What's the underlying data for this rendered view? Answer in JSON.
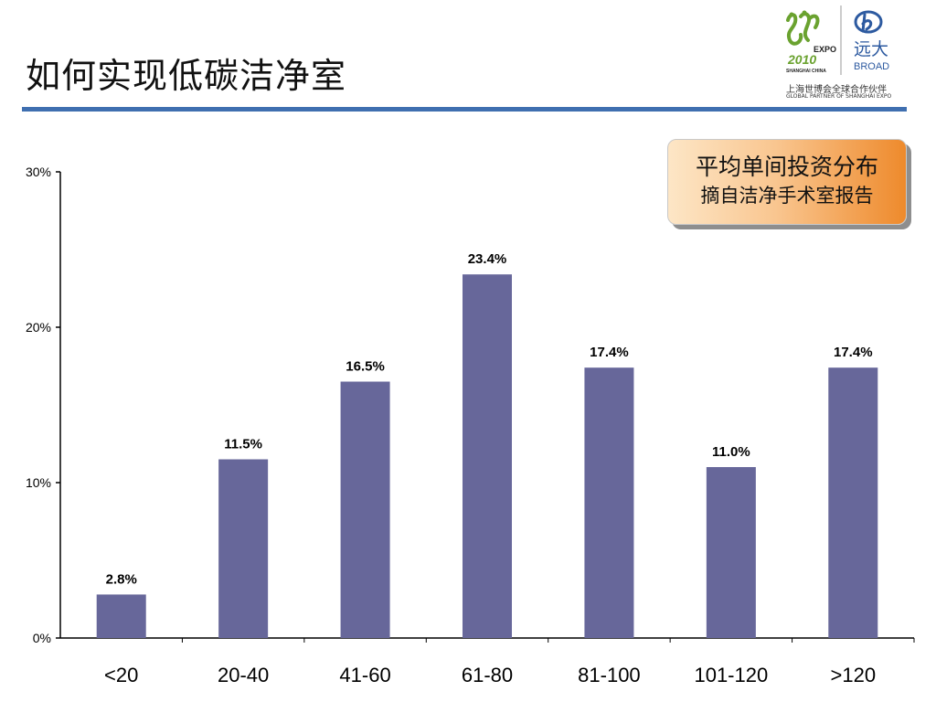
{
  "slide": {
    "title": "如何实现低碳洁净室",
    "logo": {
      "expo_word": "EXPO",
      "expo_year": "2010",
      "expo_place": "SHANGHAI CHINA",
      "brand_cn": "远大",
      "brand_en": "BROAD",
      "partner_cn": "上海世博会全球合作伙伴",
      "partner_en": "GLOBAL PARTNER OF SHANGHAI EXPO"
    },
    "note": {
      "line1": "平均单间投资分布",
      "line2": "摘自洁净手术室报告"
    }
  },
  "colors": {
    "bar": "#67679a",
    "rule": "#3f6fb0",
    "expo_green": "#6aa22f",
    "brand_blue": "#2d5aa0"
  },
  "chart_data": {
    "type": "bar",
    "categories": [
      "<20",
      "20-40",
      "41-60",
      "61-80",
      "81-100",
      "101-120",
      ">120"
    ],
    "values": [
      2.8,
      11.5,
      16.5,
      23.4,
      17.4,
      11.0,
      17.4
    ],
    "value_labels": [
      "2.8%",
      "11.5%",
      "16.5%",
      "23.4%",
      "17.4%",
      "11.0%",
      "17.4%"
    ],
    "yticks": [
      0,
      10,
      20,
      30
    ],
    "ytick_labels": [
      "0%",
      "10%",
      "20%",
      "30%"
    ],
    "ylim": [
      0,
      30
    ],
    "title": "",
    "xlabel": "",
    "ylabel": "",
    "grid": false,
    "legend": "none"
  }
}
